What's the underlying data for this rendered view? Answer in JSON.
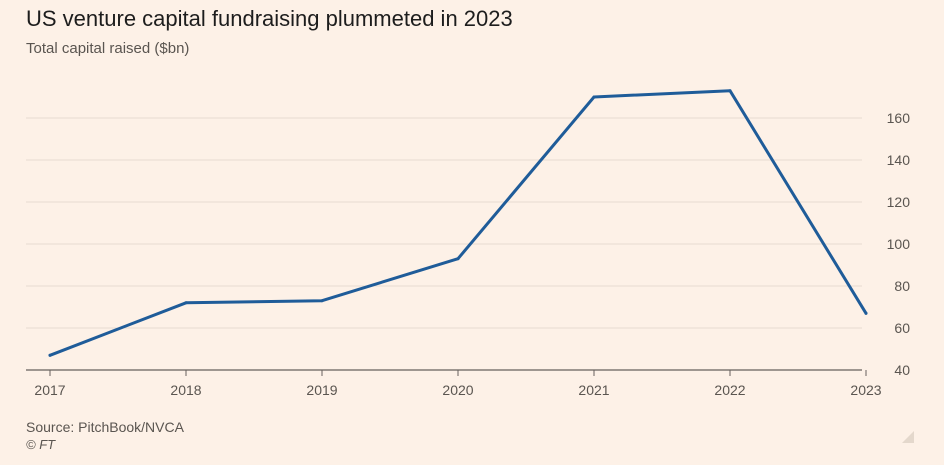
{
  "chart_data": {
    "type": "line",
    "title": "US venture capital fundraising plummeted in 2023",
    "subtitle": "Total capital raised ($bn)",
    "x": [
      "2017",
      "2018",
      "2019",
      "2020",
      "2021",
      "2022",
      "2023"
    ],
    "series": [
      {
        "name": "Total capital raised ($bn)",
        "values": [
          47,
          72,
          73,
          93,
          170,
          173,
          67
        ],
        "color": "#1F5C99"
      }
    ],
    "xlabel": "",
    "ylabel": "",
    "ylim": [
      40,
      175
    ],
    "yticks": [
      40,
      60,
      80,
      100,
      120,
      140,
      160
    ],
    "y_axis_side": "right",
    "grid": true,
    "gridline_color": "#E8DCD1",
    "baseline_color": "#66605C"
  },
  "footer": {
    "source": "Source: PitchBook/NVCA",
    "credit": "© FT"
  }
}
